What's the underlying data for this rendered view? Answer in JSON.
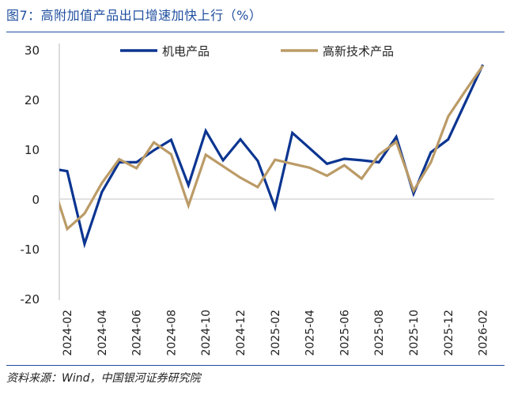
{
  "title": "图7：高附加值产品出口增速加快上行（%）",
  "source": "资料来源：Wind，中国银河证券研究院",
  "chart_data": {
    "type": "line",
    "title": "高附加值产品出口增速加快上行（%）",
    "xlabel": "",
    "ylabel": "%",
    "ylim": [
      -20,
      30
    ],
    "yticks": [
      "30",
      "20",
      "10",
      "0",
      "-10",
      "-20"
    ],
    "ytick_values": [
      30,
      20,
      10,
      0,
      -10,
      -20
    ],
    "grid": false,
    "legend_position": "top",
    "x": [
      "2024-01",
      "2024-02",
      "2024-03",
      "2024-04",
      "2024-05",
      "2024-06",
      "2024-07",
      "2024-08",
      "2024-09",
      "2024-10",
      "2024-11",
      "2024-12",
      "2025-01",
      "2025-02",
      "2025-03",
      "2025-04",
      "2025-05",
      "2025-06",
      "2025-07",
      "2025-08",
      "2025-09",
      "2025-10",
      "2025-11",
      "2025-12",
      "2026-01",
      "2026-02"
    ],
    "xtick_labels": [
      "2024-02",
      "2024-04",
      "2024-06",
      "2024-08",
      "2024-10",
      "2024-12",
      "2025-02",
      "2025-04",
      "2025-06",
      "2025-08",
      "2025-10",
      "2025-12",
      "2026-02"
    ],
    "series": [
      {
        "name": "机电产品",
        "color": "#0b3591",
        "values": [
          6.2,
          5.6,
          -9.0,
          1.4,
          7.4,
          7.4,
          9.8,
          11.9,
          2.8,
          13.7,
          7.8,
          12.0,
          7.7,
          -1.7,
          13.3,
          10.2,
          7.1,
          8.1,
          7.8,
          7.4,
          12.5,
          1.1,
          9.4,
          12.0,
          19.5,
          27.0
        ]
      },
      {
        "name": "高新技术产品",
        "color": "#bb9b67",
        "values": [
          4.9,
          -6.0,
          -2.9,
          3.2,
          8.0,
          6.2,
          11.4,
          9.0,
          -1.3,
          8.9,
          6.6,
          4.3,
          2.4,
          7.9,
          7.1,
          6.3,
          4.7,
          6.8,
          4.1,
          8.9,
          11.5,
          1.7,
          7.4,
          16.6,
          21.8,
          26.8
        ]
      }
    ]
  }
}
